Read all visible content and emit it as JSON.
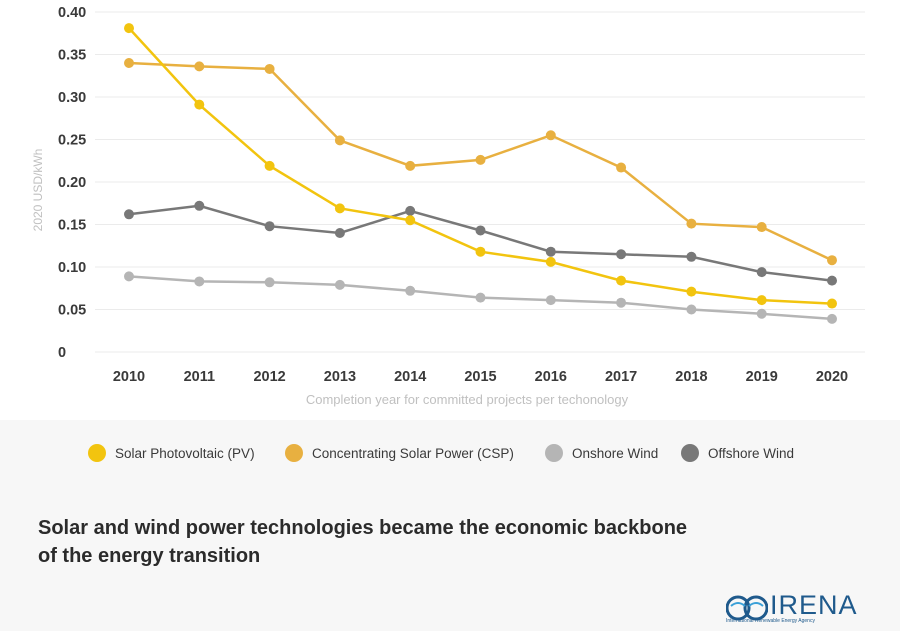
{
  "chart_data": {
    "type": "line",
    "title": "",
    "xlabel": "Completion year for committed projects per techonology",
    "ylabel": "2020 USD/kWh",
    "ylim": [
      0,
      0.4
    ],
    "yticks": [
      "0",
      "0.05",
      "0.10",
      "0.15",
      "0.20",
      "0.25",
      "0.30",
      "0.35",
      "0.40"
    ],
    "x": [
      "2010",
      "2011",
      "2012",
      "2013",
      "2014",
      "2015",
      "2016",
      "2017",
      "2018",
      "2019",
      "2020"
    ],
    "grid": true,
    "legend_position": "bottom",
    "series": [
      {
        "name": "Solar Photovoltaic (PV)",
        "color": "#f2c40f",
        "values": [
          0.381,
          0.291,
          0.219,
          0.169,
          0.155,
          0.118,
          0.106,
          0.084,
          0.071,
          0.061,
          0.057
        ]
      },
      {
        "name": "Concentrating Solar Power (CSP)",
        "color": "#e8b040",
        "values": [
          0.34,
          0.336,
          0.333,
          0.249,
          0.219,
          0.226,
          0.255,
          0.217,
          0.151,
          0.147,
          0.108
        ]
      },
      {
        "name": "Onshore Wind",
        "color": "#b5b5b5",
        "values": [
          0.089,
          0.083,
          0.082,
          0.079,
          0.072,
          0.064,
          0.061,
          0.058,
          0.05,
          0.045,
          0.039
        ]
      },
      {
        "name": "Offshore Wind",
        "color": "#787878",
        "values": [
          0.162,
          0.172,
          0.148,
          0.14,
          0.166,
          0.143,
          0.118,
          0.115,
          0.112,
          0.094,
          0.084
        ]
      }
    ]
  },
  "caption": {
    "line1": "Solar and wind power technologies became the economic backbone",
    "line2": "of the energy transition"
  },
  "logo": {
    "text": "IRENA",
    "subtext": "International Renewable Energy Agency"
  }
}
